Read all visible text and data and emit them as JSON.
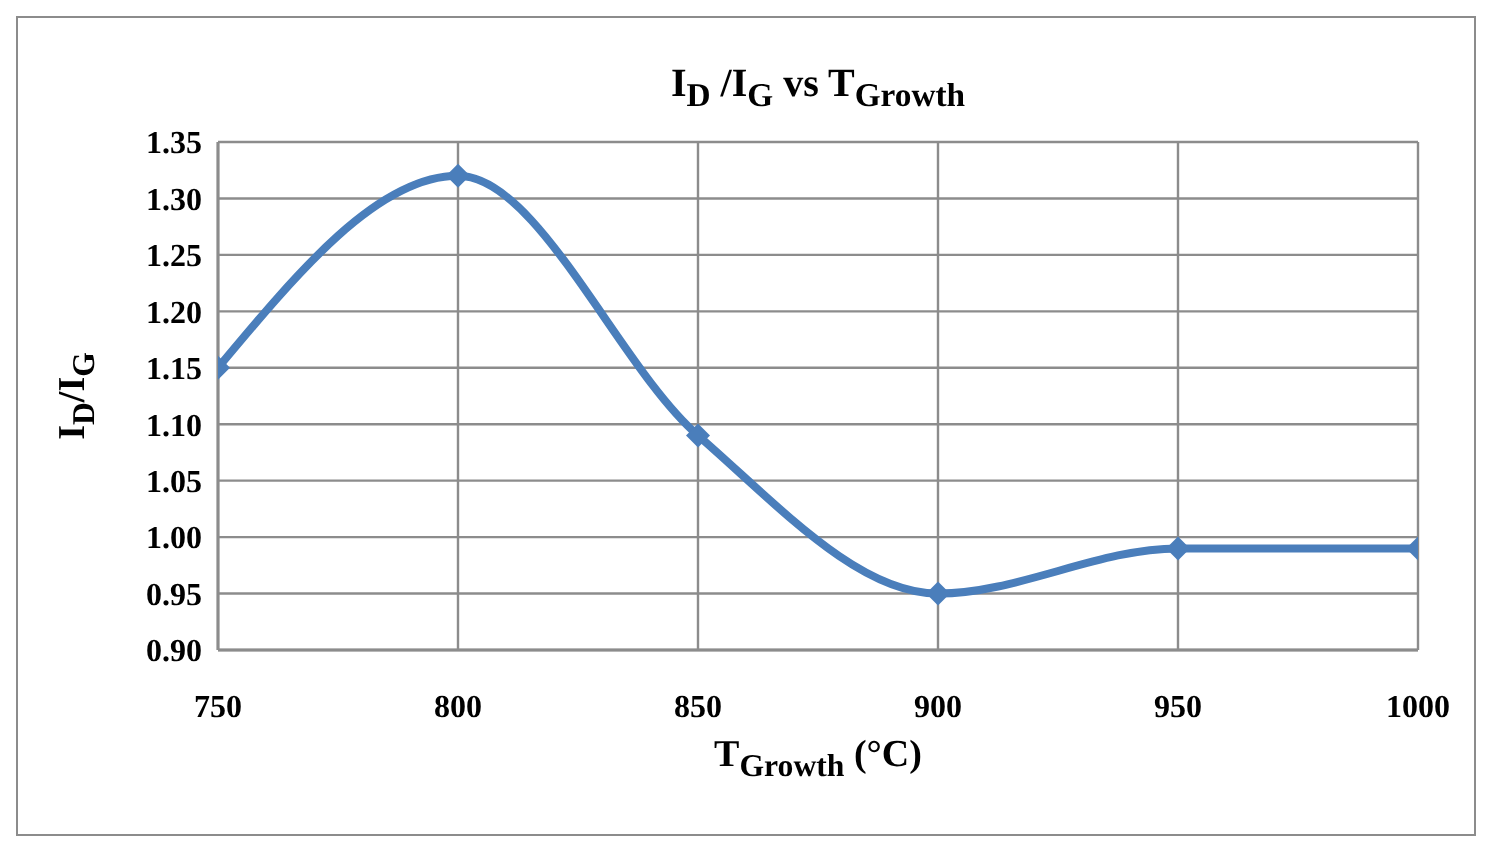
{
  "chart_data": {
    "type": "line",
    "title": "I$_{D}$ /I$_{G}$ vs  T$_{Growth}$",
    "xlabel": "T$_{Growth}$  (°C)",
    "ylabel": "I$_{D}$/I$_{G}$",
    "x": [
      750,
      800,
      850,
      900,
      950,
      1000
    ],
    "series": [
      {
        "color": "#4a7ebb",
        "values": [
          1.15,
          1.32,
          1.09,
          0.95,
          0.99,
          0.99
        ]
      }
    ],
    "xlim": [
      750,
      1000
    ],
    "xticks": [
      750,
      800,
      850,
      900,
      950,
      1000
    ],
    "ylim": [
      0.9,
      1.35
    ],
    "yticks": [
      {
        "value": 0.9,
        "label": "0.90"
      },
      {
        "value": 0.95,
        "label": "0.95"
      },
      {
        "value": 1.0,
        "label": "1.00"
      },
      {
        "value": 1.05,
        "label": "1.05"
      },
      {
        "value": 1.1,
        "label": "1.10"
      },
      {
        "value": 1.15,
        "label": "1.15"
      },
      {
        "value": 1.2,
        "label": "1.20"
      },
      {
        "value": 1.25,
        "label": "1.25"
      },
      {
        "value": 1.3,
        "label": "1.30"
      },
      {
        "value": 1.35,
        "label": "1.35"
      }
    ],
    "grid": true,
    "legend": false,
    "marker": "diamond",
    "line_style": "solid"
  }
}
